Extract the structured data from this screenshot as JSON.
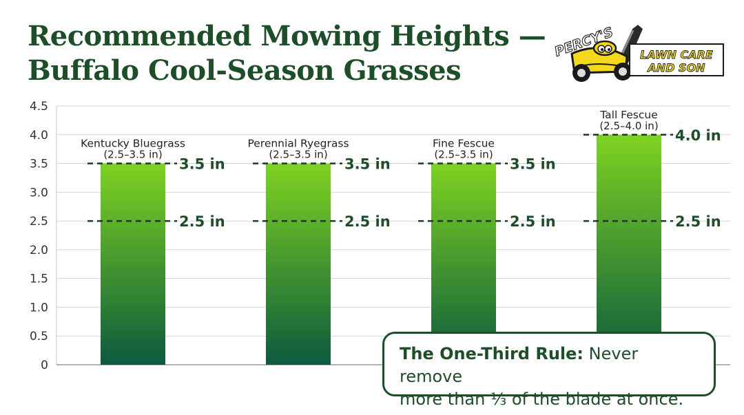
{
  "header": {
    "title_line1": "Recommended Mowing Heights —",
    "title_line2": "Buffalo Cool-Season Grasses"
  },
  "logo": {
    "brand_top": "PERCY'S",
    "brand_line1": "LAWN CARE",
    "brand_line2": "AND SON",
    "icon": "lawn-mower-icon"
  },
  "callout": {
    "rule_label": "The One-Third Rule:",
    "rule_text_1": " Never remove",
    "rule_text_2": "more than ⅓ of the blade at once."
  },
  "colors": {
    "title": "#1c4f27",
    "bar_top": "#7ed321",
    "bar_bottom": "#0c5a3e",
    "marker_line": "#1c3a22",
    "grid": "#d4d4d4"
  },
  "chart_data": {
    "type": "bar",
    "categories": [
      "Kentucky Bluegrass",
      "Perennial Ryegrass",
      "Fine Fescue",
      "Tall Fescue"
    ],
    "ranges": [
      "(2.5–3.5 in)",
      "(2.5–3.5 in)",
      "(2.5–3.5 in)",
      "(2.5–4.0 in)"
    ],
    "values": [
      3.5,
      3.5,
      3.5,
      4.0
    ],
    "min_values": [
      2.5,
      2.5,
      2.5,
      2.5
    ],
    "max_labels": [
      "3.5 in",
      "3.5 in",
      "3.5 in",
      "4.0 in"
    ],
    "min_labels": [
      "2.5 in",
      "2.5 in",
      "2.5 in",
      "2.5 in"
    ],
    "yticks": [
      "0",
      "0.5",
      "1.0",
      "1.5",
      "2.0",
      "2.5",
      "3.0",
      "3.5",
      "4.0",
      "4.5"
    ],
    "ylim": [
      0,
      4.5
    ],
    "grid": true
  }
}
